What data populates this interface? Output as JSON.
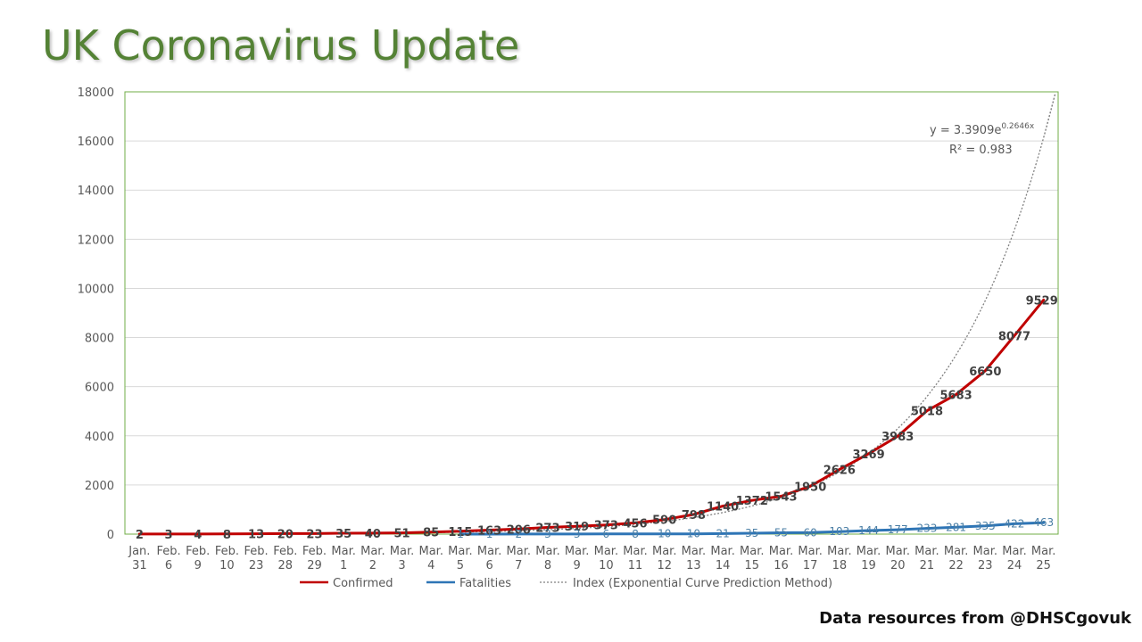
{
  "page": {
    "title": "UK Coronavirus Update",
    "source": "Data resources from @DHSCgovuk"
  },
  "colors": {
    "title": "#548235",
    "confirmed": "#c00000",
    "fatalities": "#2e75b6",
    "index": "#808080",
    "plot_border": "#70ad47",
    "grid": "#d9d9d9"
  },
  "chart_data": {
    "type": "line",
    "categories": [
      [
        "Jan.",
        "31"
      ],
      [
        "Feb.",
        "6"
      ],
      [
        "Feb.",
        "9"
      ],
      [
        "Feb.",
        "10"
      ],
      [
        "Feb.",
        "23"
      ],
      [
        "Feb.",
        "28"
      ],
      [
        "Feb.",
        "29"
      ],
      [
        "Mar.",
        "1"
      ],
      [
        "Mar.",
        "2"
      ],
      [
        "Mar.",
        "3"
      ],
      [
        "Mar.",
        "4"
      ],
      [
        "Mar.",
        "5"
      ],
      [
        "Mar.",
        "6"
      ],
      [
        "Mar.",
        "7"
      ],
      [
        "Mar.",
        "8"
      ],
      [
        "Mar.",
        "9"
      ],
      [
        "Mar.",
        "10"
      ],
      [
        "Mar.",
        "11"
      ],
      [
        "Mar.",
        "12"
      ],
      [
        "Mar.",
        "13"
      ],
      [
        "Mar.",
        "14"
      ],
      [
        "Mar.",
        "15"
      ],
      [
        "Mar.",
        "16"
      ],
      [
        "Mar.",
        "17"
      ],
      [
        "Mar.",
        "18"
      ],
      [
        "Mar.",
        "19"
      ],
      [
        "Mar.",
        "20"
      ],
      [
        "Mar.",
        "21"
      ],
      [
        "Mar.",
        "22"
      ],
      [
        "Mar.",
        "23"
      ],
      [
        "Mar.",
        "24"
      ],
      [
        "Mar.",
        "25"
      ]
    ],
    "series": [
      {
        "name": "Confirmed",
        "values": [
          2,
          3,
          4,
          8,
          13,
          20,
          23,
          35,
          40,
          51,
          85,
          115,
          163,
          206,
          273,
          319,
          373,
          456,
          590,
          798,
          1140,
          1372,
          1543,
          1950,
          2626,
          3269,
          3983,
          5018,
          5683,
          6650,
          8077,
          9529
        ]
      },
      {
        "name": "Fatalities",
        "values": [
          null,
          null,
          null,
          null,
          null,
          null,
          null,
          null,
          null,
          null,
          null,
          1,
          1,
          2,
          3,
          3,
          6,
          8,
          10,
          10,
          21,
          35,
          55,
          60,
          103,
          144,
          177,
          233,
          281,
          335,
          422,
          463
        ]
      }
    ],
    "trendline": {
      "name": "Index (Exponential Curve Prediction Method)",
      "a": 3.3909,
      "b": 0.2646,
      "start_index": 7,
      "equation": "y = 3.3909e",
      "exponent": "0.2646x",
      "r2": "R² = 0.983"
    },
    "y_ticks": [
      "0",
      "2000",
      "4000",
      "6000",
      "8000",
      "10000",
      "12000",
      "14000",
      "16000",
      "18000"
    ],
    "ylim": [
      0,
      18000
    ],
    "grid": true,
    "legend_position": "bottom"
  }
}
